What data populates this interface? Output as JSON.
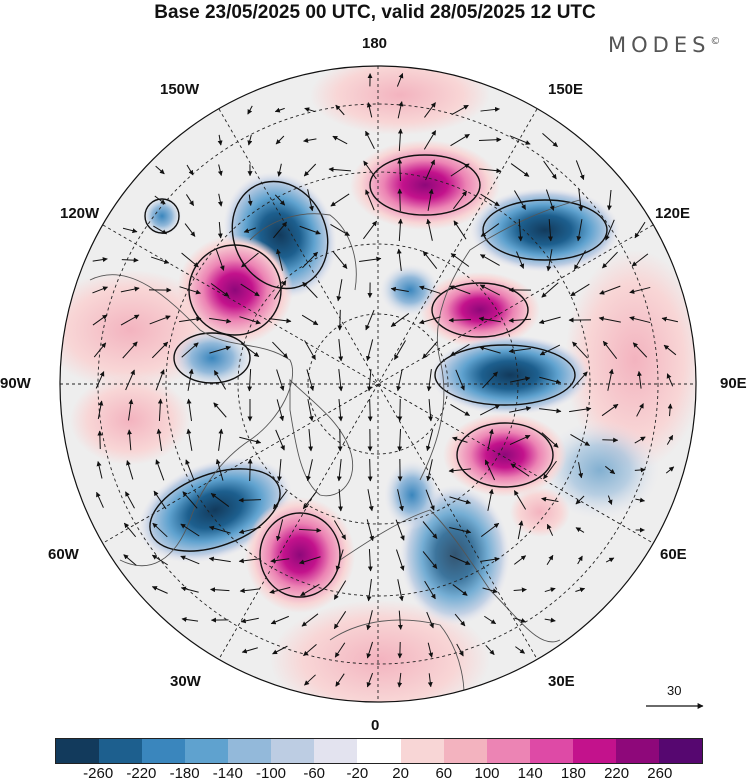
{
  "title": "Base 23/05/2025 00 UTC, valid 28/05/2025 12 UTC",
  "brand": "MODES",
  "brand_mark": "©",
  "longitude_labels": {
    "top": "180",
    "top_left": "150W",
    "top_right": "150E",
    "upper_left": "120W",
    "upper_right": "120E",
    "left": "90W",
    "right": "90E",
    "lower_left": "60W",
    "lower_right": "60E",
    "bottom_left": "30W",
    "bottom_right": "30E",
    "bottom": "0"
  },
  "reference_vector": {
    "label": "30"
  },
  "colorbar": {
    "colors": [
      "#123a5c",
      "#1d5f8e",
      "#3a86bd",
      "#5fa2cf",
      "#93b9da",
      "#bdcde3",
      "#e3e3ef",
      "#ffffff",
      "#f8d6d6",
      "#f3b3bf",
      "#ec84b4",
      "#de4aa6",
      "#c3128c",
      "#8e087a",
      "#560770"
    ],
    "ticks": [
      "-260",
      "-220",
      "-180",
      "-140",
      "-100",
      "-60",
      "-20",
      "20",
      "60",
      "100",
      "140",
      "180",
      "220",
      "260"
    ]
  },
  "anomaly_centers": [
    {
      "lon": 150,
      "lat": 35,
      "sign": "negative"
    },
    {
      "lon": 125,
      "lat": 40,
      "sign": "negative"
    },
    {
      "lon": 65,
      "lat": 45,
      "sign": "negative"
    },
    {
      "lon": -22,
      "lat": 43,
      "sign": "negative"
    },
    {
      "lon": -53,
      "lat": 48,
      "sign": "negative"
    },
    {
      "lon": -97,
      "lat": 48,
      "sign": "negative"
    },
    {
      "lon": -152,
      "lat": 50,
      "sign": "negative"
    },
    {
      "lon": -170,
      "lat": 42,
      "sign": "positive"
    },
    {
      "lon": 98,
      "lat": 38,
      "sign": "positive"
    },
    {
      "lon": 100,
      "lat": 62,
      "sign": "positive"
    },
    {
      "lon": 40,
      "lat": 52,
      "sign": "positive"
    },
    {
      "lon": -132,
      "lat": 46,
      "sign": "positive"
    },
    {
      "lon": -27,
      "lat": 47,
      "sign": "positive"
    }
  ]
}
